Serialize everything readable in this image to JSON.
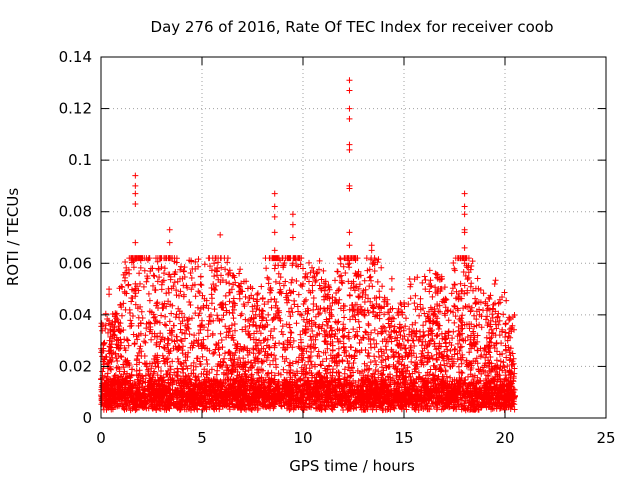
{
  "chart_data": {
    "type": "scatter",
    "title": "Day 276 of 2016, Rate Of TEC Index for receiver coob",
    "xlabel": "GPS time / hours",
    "ylabel": "ROTI / TECUs",
    "xlim": [
      0,
      25
    ],
    "ylim": [
      0,
      0.14
    ],
    "grid": true,
    "marker": "+",
    "color": "#ff0000",
    "xticks": [
      0,
      5,
      10,
      15,
      20,
      25
    ],
    "xtick_labels": [
      "0",
      "5",
      "10",
      "15",
      "20",
      "25"
    ],
    "yticks": [
      0,
      0.02,
      0.04,
      0.06,
      0.08,
      0.1,
      0.12,
      0.14
    ],
    "ytick_labels": [
      "0",
      "0.02",
      "0.04",
      "0.06",
      "0.08",
      "0.1",
      "0.12",
      "0.14"
    ],
    "data_range_hours": [
      0,
      20.5
    ],
    "peaks": [
      {
        "x": 1.7,
        "values": [
          0.094,
          0.09,
          0.087,
          0.083,
          0.068,
          0.052,
          0.05
        ]
      },
      {
        "x": 3.4,
        "values": [
          0.073,
          0.068,
          0.062
        ]
      },
      {
        "x": 5.6,
        "values": [
          0.06,
          0.055,
          0.05
        ]
      },
      {
        "x": 5.9,
        "values": [
          0.071
        ]
      },
      {
        "x": 8.6,
        "values": [
          0.087,
          0.082,
          0.078,
          0.072,
          0.065,
          0.058
        ]
      },
      {
        "x": 9.5,
        "values": [
          0.079,
          0.075,
          0.07,
          0.06
        ]
      },
      {
        "x": 10.0,
        "values": [
          0.058,
          0.052
        ]
      },
      {
        "x": 12.3,
        "values": [
          0.131,
          0.127,
          0.12,
          0.116,
          0.106,
          0.104,
          0.09,
          0.089,
          0.072,
          0.067,
          0.06
        ]
      },
      {
        "x": 13.4,
        "values": [
          0.067,
          0.065
        ]
      },
      {
        "x": 14.4,
        "values": [
          0.054,
          0.05
        ]
      },
      {
        "x": 18.0,
        "values": [
          0.087,
          0.082,
          0.079,
          0.073,
          0.072,
          0.066,
          0.06
        ]
      },
      {
        "x": 0.4,
        "values": [
          0.05,
          0.048
        ]
      },
      {
        "x": 1.0,
        "values": [
          0.051,
          0.043
        ]
      },
      {
        "x": 16.3,
        "values": [
          0.051
        ]
      },
      {
        "x": 20.2,
        "values": [
          0.039,
          0.038
        ]
      }
    ]
  }
}
